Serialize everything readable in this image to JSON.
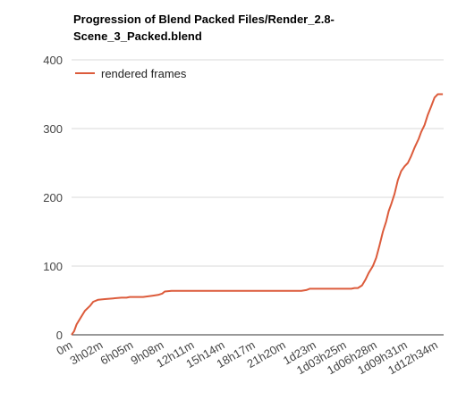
{
  "chart_data": {
    "type": "line",
    "title_lines": [
      "Progression of Blend Packed Files/Render_2.8-",
      "Scene_3_Packed.blend"
    ],
    "xlabel": "",
    "ylabel": "",
    "ylim": [
      0,
      400
    ],
    "y_ticks": [
      0,
      100,
      200,
      300,
      400
    ],
    "x_tick_labels": [
      "0m",
      "3h02m",
      "6h05m",
      "9h08m",
      "12h11m",
      "15h14m",
      "18h17m",
      "21h20m",
      "1d23m",
      "1d03h25m",
      "1d06h28m",
      "1d09h31m",
      "1d12h34m"
    ],
    "x_tick_minutes": [
      0,
      182,
      365,
      548,
      731,
      914,
      1097,
      1280,
      1463,
      1645,
      1828,
      2011,
      2194
    ],
    "xlim_minutes": [
      0,
      2235
    ],
    "grid": true,
    "legend": {
      "position": "top-left"
    },
    "colors": {
      "series": "#dc5b3b",
      "grid": "#d9d9d9",
      "axis": "#333333"
    },
    "series": [
      {
        "name": "rendered frames",
        "x_minutes": [
          0,
          15,
          30,
          55,
          80,
          110,
          130,
          160,
          200,
          250,
          300,
          330,
          350,
          430,
          460,
          490,
          520,
          545,
          560,
          600,
          700,
          800,
          900,
          1000,
          1100,
          1200,
          1300,
          1380,
          1410,
          1430,
          1500,
          1560,
          1600,
          1630,
          1660,
          1680,
          1700,
          1720,
          1745,
          1765,
          1785,
          1810,
          1830,
          1850,
          1870,
          1890,
          1905,
          1920,
          1940,
          1960,
          1980,
          2000,
          2020,
          2040,
          2060,
          2085,
          2100,
          2120,
          2140,
          2160,
          2180,
          2200,
          2215,
          2230
        ],
        "values": [
          0,
          5,
          15,
          25,
          35,
          42,
          48,
          51,
          52,
          53,
          54,
          54,
          55,
          55,
          56,
          57,
          58,
          60,
          63,
          64,
          64,
          64,
          64,
          64,
          64,
          64,
          64,
          64,
          65,
          67,
          67,
          67,
          67,
          67,
          67,
          67,
          68,
          68,
          72,
          80,
          90,
          100,
          112,
          130,
          150,
          165,
          180,
          190,
          205,
          225,
          238,
          245,
          250,
          260,
          272,
          285,
          295,
          305,
          320,
          332,
          345,
          350,
          350,
          350
        ]
      }
    ]
  }
}
